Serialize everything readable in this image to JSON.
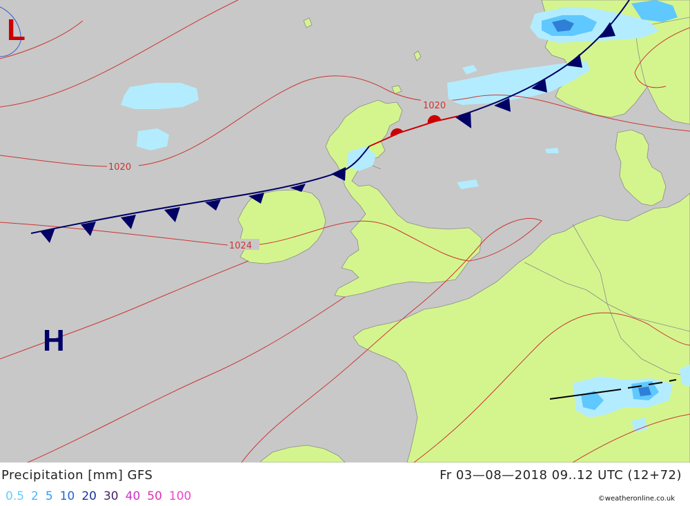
{
  "map": {
    "low_label": "L",
    "high_label": "H",
    "isobar_labels": [
      "1020",
      "1020",
      "1024"
    ]
  },
  "footer": {
    "title": "Precipitation [mm] GFS",
    "valid_time": "Fr 03—08—2018 09..12 UTC (12+72)",
    "credit": "©weatheronline.co.uk"
  },
  "legend": [
    {
      "label": "0.5",
      "color": "#66ccff"
    },
    {
      "label": "2",
      "color": "#4db3ff"
    },
    {
      "label": "5",
      "color": "#3399ff"
    },
    {
      "label": "10",
      "color": "#2266cc"
    },
    {
      "label": "20",
      "color": "#1a3399"
    },
    {
      "label": "30",
      "color": "#442266"
    },
    {
      "label": "40",
      "color": "#cc33cc"
    },
    {
      "label": "50",
      "color": "#dd33aa"
    },
    {
      "label": "100",
      "color": "#ee44cc"
    }
  ],
  "colors": {
    "sea": "#c8c8c8",
    "land": "#d4f58e",
    "precip_light": "#b3ecff",
    "precip_medium": "#5fc8ff",
    "precip_heavy": "#2f7fd6",
    "isobar": "#cc3333",
    "cold_front": "#000066",
    "warm_front": "#cc0000",
    "low": "#cc0000",
    "high": "#000066"
  }
}
